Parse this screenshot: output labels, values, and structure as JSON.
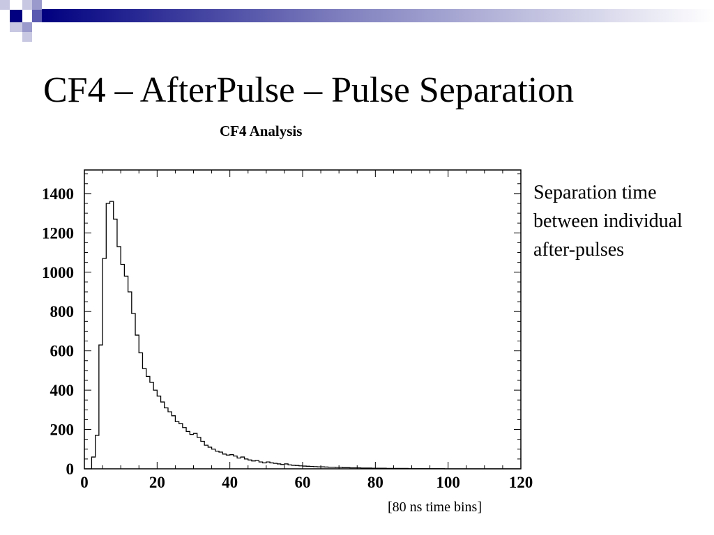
{
  "slide": {
    "title": "CF4 – AfterPulse – Pulse Separation",
    "side_note": "Separation time between individual after-pulses",
    "x_note": "[80 ns time bins]"
  },
  "chart_data": {
    "type": "histogram",
    "title": "CF4 Analysis",
    "xlabel": "",
    "ylabel": "",
    "xlim": [
      0,
      120
    ],
    "ylim": [
      0,
      1520
    ],
    "x_ticks": [
      0,
      20,
      40,
      60,
      80,
      100,
      120
    ],
    "y_ticks": [
      0,
      200,
      400,
      600,
      800,
      1000,
      1200,
      1400
    ],
    "bin_width": 1,
    "bin_start": 0,
    "values": [
      0,
      0,
      60,
      170,
      630,
      1070,
      1350,
      1360,
      1270,
      1130,
      1040,
      980,
      900,
      790,
      680,
      590,
      510,
      470,
      440,
      400,
      370,
      340,
      310,
      290,
      270,
      240,
      230,
      210,
      190,
      175,
      180,
      160,
      140,
      120,
      110,
      100,
      90,
      85,
      75,
      70,
      72,
      65,
      55,
      60,
      50,
      45,
      40,
      42,
      35,
      30,
      35,
      30,
      28,
      25,
      22,
      25,
      20,
      18,
      17,
      15,
      14,
      13,
      12,
      11,
      10,
      10,
      9,
      8,
      8,
      7,
      7,
      6,
      6,
      5,
      5,
      5,
      4,
      4,
      4,
      3,
      3,
      3,
      3,
      2,
      2,
      2,
      2,
      2,
      2,
      1,
      1,
      1,
      1,
      1,
      1,
      1,
      1,
      1,
      1,
      0,
      0,
      0,
      0,
      0,
      0,
      0,
      0,
      0,
      0,
      0,
      0,
      0,
      0,
      0,
      0,
      0,
      0,
      0,
      0,
      0
    ],
    "grid": false,
    "colors": {
      "line": "#000000"
    }
  },
  "theme": {
    "deco_colors": [
      "#000080",
      "#5a5ab0",
      "#9a9acc",
      "#c8c8e2"
    ]
  }
}
